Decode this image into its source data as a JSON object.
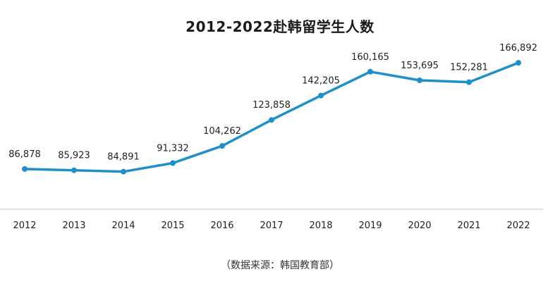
{
  "chart_data": {
    "type": "line",
    "title": "2012-2022赴韩留学生人数",
    "x": [
      "2012",
      "2013",
      "2014",
      "2015",
      "2016",
      "2017",
      "2018",
      "2019",
      "2020",
      "2021",
      "2022"
    ],
    "values": [
      86878,
      85923,
      84891,
      91332,
      104262,
      123858,
      142205,
      160165,
      153695,
      152281,
      166892
    ],
    "data_labels": [
      "86,878",
      "85,923",
      "84,891",
      "91,332",
      "104,262",
      "123,858",
      "142,205",
      "160,165",
      "153,695",
      "152,281",
      "166,892"
    ],
    "xlabel": "",
    "ylabel": "",
    "ylim": [
      55000,
      185000
    ],
    "grid": false,
    "line_color": "#1e90c8",
    "axis_color": "#bfbfbf",
    "source": "（数据来源：韩国教育部）"
  }
}
